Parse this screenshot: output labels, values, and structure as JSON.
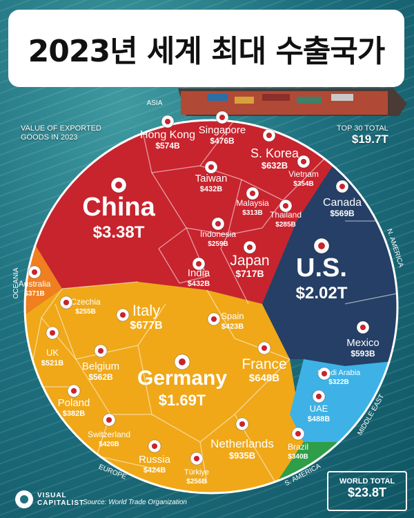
{
  "page": {
    "title": "2023년 세계 최대 수출국가",
    "subtitle_line1": "VALUE OF EXPORTED",
    "subtitle_line2": "GOODS IN 2023",
    "top30_label": "TOP 30 TOTAL",
    "top30_value": "$19.7T",
    "world_label": "WORLD TOTAL",
    "world_value": "$23.8T",
    "source": "Source: World Trade Organization",
    "brand_line1": "VISUAL",
    "brand_line2": "CAPITALIST"
  },
  "colors": {
    "asia": "#c8242e",
    "europe": "#f0a818",
    "n_america": "#253f66",
    "oceania": "#f07f1f",
    "middle_east": "#3eb2e6",
    "s_america": "#2e9e48"
  },
  "chart_data": {
    "type": "voronoi-treemap",
    "title": "2023년 세계 최대 수출국가",
    "unit": "USD",
    "regions": [
      {
        "name": "ASIA",
        "countries": [
          {
            "name": "China",
            "value": "$3.38T"
          },
          {
            "name": "Japan",
            "value": "$717B"
          },
          {
            "name": "S. Korea",
            "value": "$632B"
          },
          {
            "name": "Hong Kong",
            "value": "$574B"
          },
          {
            "name": "Singapore",
            "value": "$476B"
          },
          {
            "name": "Taiwan",
            "value": "$432B"
          },
          {
            "name": "India",
            "value": "$432B"
          },
          {
            "name": "Vietnam",
            "value": "$354B"
          },
          {
            "name": "Malaysia",
            "value": "$313B"
          },
          {
            "name": "Thailand",
            "value": "$285B"
          },
          {
            "name": "Indonesia",
            "value": "$259B"
          }
        ]
      },
      {
        "name": "EUROPE",
        "countries": [
          {
            "name": "Germany",
            "value": "$1.69T"
          },
          {
            "name": "Netherlands",
            "value": "$935B"
          },
          {
            "name": "Italy",
            "value": "$677B"
          },
          {
            "name": "France",
            "value": "$648B"
          },
          {
            "name": "Belgium",
            "value": "$562B"
          },
          {
            "name": "UK",
            "value": "$521B"
          },
          {
            "name": "Russia",
            "value": "$424B"
          },
          {
            "name": "Spain",
            "value": "$423B"
          },
          {
            "name": "Switzerland",
            "value": "$420B"
          },
          {
            "name": "Poland",
            "value": "$382B"
          },
          {
            "name": "Türkiye",
            "value": "$256B"
          },
          {
            "name": "Czechia",
            "value": "$255B"
          }
        ]
      },
      {
        "name": "N. AMERICA",
        "countries": [
          {
            "name": "U.S.",
            "value": "$2.02T"
          },
          {
            "name": "Mexico",
            "value": "$593B"
          },
          {
            "name": "Canada",
            "value": "$569B"
          }
        ]
      },
      {
        "name": "OCEANIA",
        "countries": [
          {
            "name": "Australia",
            "value": "$371B"
          }
        ]
      },
      {
        "name": "MIDDLE EAST",
        "countries": [
          {
            "name": "UAE",
            "value": "$488B"
          },
          {
            "name": "Saudi Arabia",
            "value": "$322B"
          }
        ]
      },
      {
        "name": "S. AMERICA",
        "countries": [
          {
            "name": "Brazil",
            "value": "$340B"
          }
        ]
      }
    ]
  }
}
